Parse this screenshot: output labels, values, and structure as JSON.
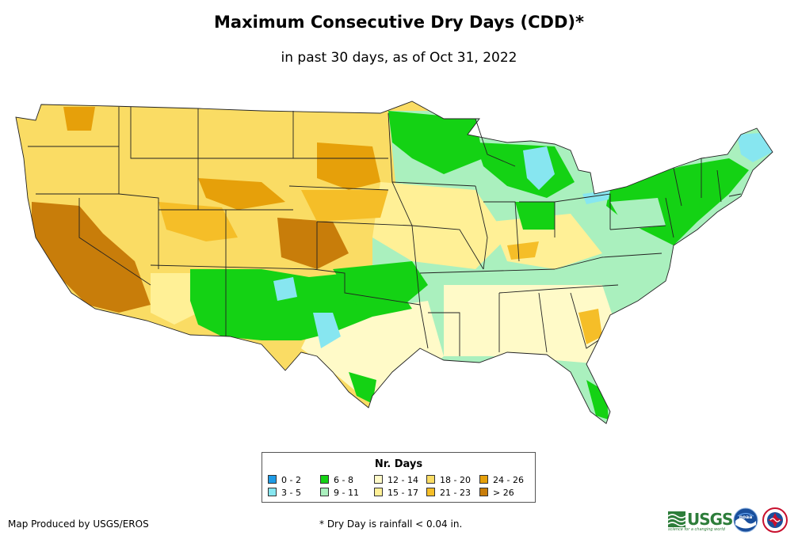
{
  "header": {
    "title": "Maximum Consecutive Dry Days (CDD)*",
    "subtitle": "in past 30 days, as of Oct 31, 2022"
  },
  "legend": {
    "title": "Nr. Days",
    "items": [
      {
        "label": "0 - 2",
        "color": "#1e9be6"
      },
      {
        "label": "3 - 5",
        "color": "#87e6f0"
      },
      {
        "label": "6 - 8",
        "color": "#14d214"
      },
      {
        "label": "9 - 11",
        "color": "#aaf0be"
      },
      {
        "label": "12 - 14",
        "color": "#fffac8"
      },
      {
        "label": "15 - 17",
        "color": "#fff096"
      },
      {
        "label": "18 - 20",
        "color": "#fadc64"
      },
      {
        "label": "21 - 23",
        "color": "#f5be28"
      },
      {
        "label": "24 - 26",
        "color": "#e6a00a"
      },
      {
        "label": "> 26",
        "color": "#c87d0a"
      }
    ]
  },
  "footer": {
    "producer": "Map Produced by USGS/EROS",
    "footnote": "* Dry Day is rainfall < 0.04 in.",
    "usgs_logo_text": "USGS",
    "usgs_tagline": "science for a changing world",
    "noaa_logo_text": "noaa"
  },
  "icons": [
    "usgs-logo",
    "noaa-logo",
    "nws-logo"
  ]
}
